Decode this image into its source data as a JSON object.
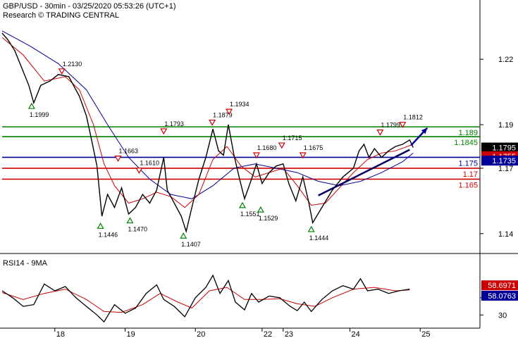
{
  "header": {
    "line1": "GBP/USD - 30min - 03/25/2020 05:53:26 (UTC+1)",
    "line2": "Research © TRADING CENTRAL"
  },
  "chart_data": {
    "type": "line",
    "instrument": "GBP/USD",
    "timeframe": "30min",
    "price_axis": {
      "ticks": [
        1.22,
        1.19,
        1.17,
        1.14
      ],
      "ylim": [
        1.1325,
        1.2375
      ]
    },
    "date_ticks": [
      {
        "label": "18",
        "x": 0.75
      },
      {
        "label": "19",
        "x": 1.75
      },
      {
        "label": "20",
        "x": 2.75
      },
      {
        "label": "22",
        "x": 3.7
      },
      {
        "label": "23",
        "x": 4.0
      },
      {
        "label": "24",
        "x": 4.95
      },
      {
        "label": "25",
        "x": 5.95
      }
    ],
    "xlim": [
      0,
      6.75
    ],
    "price_series": [
      [
        0,
        1.232
      ],
      [
        0.08,
        1.229
      ],
      [
        0.18,
        1.224
      ],
      [
        0.28,
        1.216
      ],
      [
        0.38,
        1.208
      ],
      [
        0.45,
        1.2
      ],
      [
        0.55,
        1.208
      ],
      [
        0.68,
        1.21
      ],
      [
        0.8,
        1.213
      ],
      [
        0.95,
        1.212
      ],
      [
        1.1,
        1.203
      ],
      [
        1.2,
        1.194
      ],
      [
        1.28,
        1.182
      ],
      [
        1.35,
        1.171
      ],
      [
        1.42,
        1.148
      ],
      [
        1.5,
        1.158
      ],
      [
        1.6,
        1.152
      ],
      [
        1.7,
        1.161
      ],
      [
        1.8,
        1.149
      ],
      [
        1.9,
        1.152
      ],
      [
        2.0,
        1.158
      ],
      [
        2.1,
        1.154
      ],
      [
        2.2,
        1.16
      ],
      [
        2.3,
        1.175
      ],
      [
        2.35,
        1.16
      ],
      [
        2.45,
        1.154
      ],
      [
        2.55,
        1.148
      ],
      [
        2.62,
        1.141
      ],
      [
        2.7,
        1.152
      ],
      [
        2.8,
        1.165
      ],
      [
        2.9,
        1.175
      ],
      [
        3.0,
        1.188
      ],
      [
        3.08,
        1.178
      ],
      [
        3.15,
        1.176
      ],
      [
        3.22,
        1.19
      ],
      [
        3.3,
        1.176
      ],
      [
        3.38,
        1.165
      ],
      [
        3.45,
        1.156
      ],
      [
        3.55,
        1.165
      ],
      [
        3.62,
        1.172
      ],
      [
        3.7,
        1.163
      ],
      [
        3.8,
        1.168
      ],
      [
        3.9,
        1.171
      ],
      [
        4.0,
        1.172
      ],
      [
        4.08,
        1.163
      ],
      [
        4.18,
        1.155
      ],
      [
        4.28,
        1.166
      ],
      [
        4.36,
        1.155
      ],
      [
        4.42,
        1.145
      ],
      [
        4.55,
        1.152
      ],
      [
        4.7,
        1.16
      ],
      [
        4.85,
        1.166
      ],
      [
        5.0,
        1.17
      ],
      [
        5.08,
        1.178
      ],
      [
        5.15,
        1.181
      ],
      [
        5.22,
        1.175
      ],
      [
        5.3,
        1.179
      ],
      [
        5.4,
        1.175
      ],
      [
        5.5,
        1.178
      ],
      [
        5.6,
        1.18
      ],
      [
        5.7,
        1.181
      ],
      [
        5.8,
        1.183
      ],
      [
        5.85,
        1.1795
      ]
    ],
    "ma_fast": [
      [
        0,
        1.23
      ],
      [
        0.3,
        1.222
      ],
      [
        0.6,
        1.21
      ],
      [
        0.9,
        1.212
      ],
      [
        1.1,
        1.206
      ],
      [
        1.3,
        1.19
      ],
      [
        1.45,
        1.172
      ],
      [
        1.6,
        1.162
      ],
      [
        1.8,
        1.154
      ],
      [
        2.0,
        1.156
      ],
      [
        2.2,
        1.159
      ],
      [
        2.4,
        1.157
      ],
      [
        2.6,
        1.152
      ],
      [
        2.8,
        1.158
      ],
      [
        3.0,
        1.174
      ],
      [
        3.2,
        1.18
      ],
      [
        3.4,
        1.171
      ],
      [
        3.6,
        1.166
      ],
      [
        3.8,
        1.168
      ],
      [
        4.0,
        1.17
      ],
      [
        4.2,
        1.162
      ],
      [
        4.4,
        1.153
      ],
      [
        4.6,
        1.154
      ],
      [
        4.8,
        1.161
      ],
      [
        5.0,
        1.168
      ],
      [
        5.2,
        1.174
      ],
      [
        5.4,
        1.177
      ],
      [
        5.6,
        1.178
      ],
      [
        5.85,
        1.181
      ]
    ],
    "ma_slow": [
      [
        0,
        1.233
      ],
      [
        0.4,
        1.226
      ],
      [
        0.8,
        1.218
      ],
      [
        1.2,
        1.206
      ],
      [
        1.5,
        1.19
      ],
      [
        1.8,
        1.175
      ],
      [
        2.1,
        1.165
      ],
      [
        2.4,
        1.158
      ],
      [
        2.7,
        1.156
      ],
      [
        3.0,
        1.162
      ],
      [
        3.3,
        1.17
      ],
      [
        3.6,
        1.172
      ],
      [
        3.9,
        1.17
      ],
      [
        4.2,
        1.168
      ],
      [
        4.5,
        1.164
      ],
      [
        4.8,
        1.162
      ],
      [
        5.1,
        1.164
      ],
      [
        5.4,
        1.168
      ],
      [
        5.7,
        1.173
      ],
      [
        5.85,
        1.177
      ]
    ],
    "levels": [
      {
        "value": 1.189,
        "label": "1.189",
        "color": "#008000"
      },
      {
        "value": 1.1845,
        "label": "1.1845",
        "color": "#008000"
      },
      {
        "value": 1.175,
        "label": "1.175",
        "color": "#000099"
      },
      {
        "value": 1.17,
        "label": "1.17",
        "color": "#cc0000"
      },
      {
        "value": 1.165,
        "label": "1.165",
        "color": "#cc0000"
      }
    ],
    "trendline": [
      [
        4.5,
        1.1575
      ],
      [
        5.8,
        1.1785
      ]
    ],
    "forecast_arrow": [
      [
        5.82,
        1.1805
      ],
      [
        6.05,
        1.1885
      ]
    ],
    "price_tags": [
      {
        "label": "1.1795",
        "value": 1.1795,
        "bg": "#000000"
      },
      {
        "label": "1.1755",
        "value": 1.1755,
        "bg": "#cc0000"
      },
      {
        "label": "1.1735",
        "value": 1.1735,
        "bg": "#000099"
      }
    ],
    "annotations": [
      {
        "label": "1.2130",
        "x": 0.85,
        "y": 1.213,
        "kind": "high"
      },
      {
        "label": "1.1999",
        "x": 0.42,
        "y": 1.2,
        "kind": "low"
      },
      {
        "label": "1.1663",
        "x": 1.65,
        "y": 1.173,
        "kind": "high"
      },
      {
        "label": "1.1610",
        "x": 1.95,
        "y": 1.1675,
        "kind": "high"
      },
      {
        "label": "1.1793",
        "x": 2.3,
        "y": 1.1855,
        "kind": "high"
      },
      {
        "label": "1.1446",
        "x": 1.4,
        "y": 1.145,
        "kind": "low"
      },
      {
        "label": "1.1470",
        "x": 1.82,
        "y": 1.1475,
        "kind": "low"
      },
      {
        "label": "1.1407",
        "x": 2.58,
        "y": 1.1405,
        "kind": "low"
      },
      {
        "label": "1.1879",
        "x": 2.99,
        "y": 1.1895,
        "kind": "high"
      },
      {
        "label": "1.1934",
        "x": 3.23,
        "y": 1.1945,
        "kind": "high"
      },
      {
        "label": "1.1680",
        "x": 3.62,
        "y": 1.1745,
        "kind": "high"
      },
      {
        "label": "1.1715",
        "x": 3.98,
        "y": 1.179,
        "kind": "high"
      },
      {
        "label": "1.1675",
        "x": 4.28,
        "y": 1.1745,
        "kind": "high"
      },
      {
        "label": "1.1551",
        "x": 3.42,
        "y": 1.1545,
        "kind": "low"
      },
      {
        "label": "1.1529",
        "x": 3.68,
        "y": 1.1525,
        "kind": "low"
      },
      {
        "label": "1.1444",
        "x": 4.4,
        "y": 1.1435,
        "kind": "low"
      },
      {
        "label": "1.1799",
        "x": 5.38,
        "y": 1.185,
        "kind": "high"
      },
      {
        "label": "1.1812",
        "x": 5.7,
        "y": 1.1885,
        "kind": "high"
      }
    ],
    "rsi": {
      "title": "RSI14 - 9MA",
      "ticks": [
        50,
        30
      ],
      "ylim": [
        18,
        85
      ],
      "tags": [
        {
          "label": "58.6971",
          "value": 58.6971,
          "bg": "#cc0000"
        },
        {
          "label": "58.0763",
          "value": 58.0763,
          "bg": "#000099"
        }
      ],
      "rsi_series": [
        [
          0,
          58
        ],
        [
          0.15,
          50
        ],
        [
          0.3,
          40
        ],
        [
          0.45,
          42
        ],
        [
          0.6,
          66
        ],
        [
          0.75,
          58
        ],
        [
          0.9,
          63
        ],
        [
          1.05,
          50
        ],
        [
          1.2,
          40
        ],
        [
          1.35,
          30
        ],
        [
          1.45,
          22
        ],
        [
          1.6,
          42
        ],
        [
          1.75,
          32
        ],
        [
          1.9,
          38
        ],
        [
          2.05,
          55
        ],
        [
          2.2,
          65
        ],
        [
          2.3,
          48
        ],
        [
          2.45,
          40
        ],
        [
          2.6,
          28
        ],
        [
          2.75,
          50
        ],
        [
          2.9,
          62
        ],
        [
          3.0,
          76
        ],
        [
          3.1,
          55
        ],
        [
          3.22,
          70
        ],
        [
          3.32,
          45
        ],
        [
          3.45,
          36
        ],
        [
          3.55,
          55
        ],
        [
          3.65,
          45
        ],
        [
          3.8,
          52
        ],
        [
          3.95,
          50
        ],
        [
          4.1,
          40
        ],
        [
          4.2,
          35
        ],
        [
          4.3,
          45
        ],
        [
          4.4,
          34
        ],
        [
          4.55,
          48
        ],
        [
          4.7,
          58
        ],
        [
          4.85,
          64
        ],
        [
          5.0,
          60
        ],
        [
          5.1,
          72
        ],
        [
          5.2,
          58
        ],
        [
          5.35,
          60
        ],
        [
          5.5,
          55
        ],
        [
          5.65,
          58
        ],
        [
          5.8,
          60
        ]
      ],
      "ma_series": [
        [
          0,
          56
        ],
        [
          0.3,
          48
        ],
        [
          0.6,
          55
        ],
        [
          0.9,
          60
        ],
        [
          1.2,
          48
        ],
        [
          1.45,
          34
        ],
        [
          1.7,
          33
        ],
        [
          2.0,
          42
        ],
        [
          2.25,
          55
        ],
        [
          2.5,
          45
        ],
        [
          2.7,
          38
        ],
        [
          2.95,
          58
        ],
        [
          3.2,
          62
        ],
        [
          3.45,
          48
        ],
        [
          3.7,
          48
        ],
        [
          3.95,
          49
        ],
        [
          4.2,
          43
        ],
        [
          4.45,
          40
        ],
        [
          4.7,
          50
        ],
        [
          5.0,
          60
        ],
        [
          5.3,
          62
        ],
        [
          5.6,
          58
        ],
        [
          5.8,
          59
        ]
      ]
    }
  }
}
